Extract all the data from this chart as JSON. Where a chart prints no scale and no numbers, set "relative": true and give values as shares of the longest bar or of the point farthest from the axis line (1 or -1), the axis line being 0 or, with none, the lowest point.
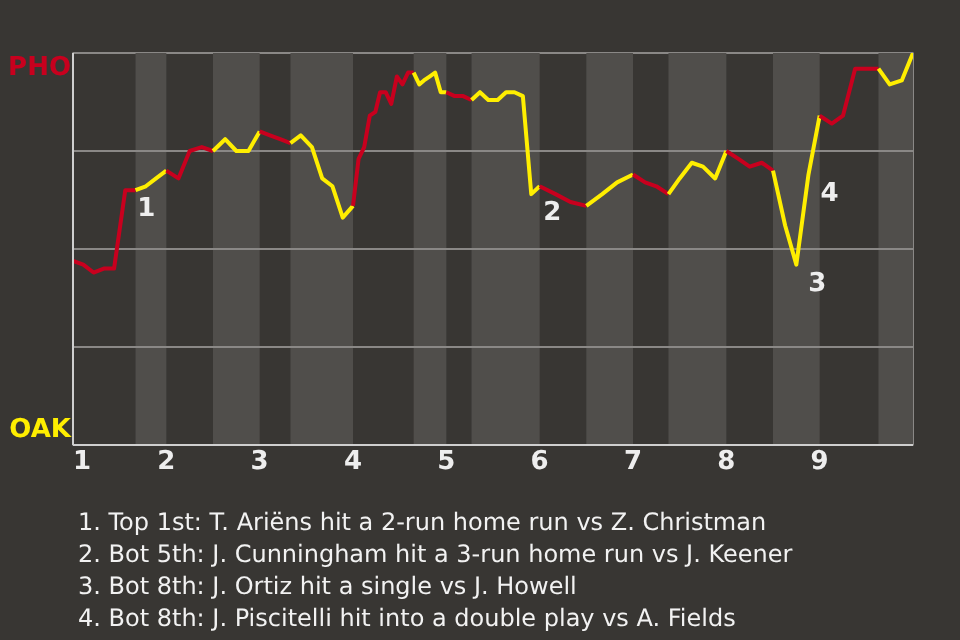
{
  "chart_data": {
    "type": "line",
    "relative": true,
    "xlim": [
      1,
      10
    ],
    "xticks": [
      1,
      2,
      3,
      4,
      5,
      6,
      7,
      8,
      9
    ],
    "line_style": "solid",
    "series": [
      {
        "color": "#c8001e",
        "x": [
          1,
          1.11,
          1.22,
          1.33,
          1.44,
          1.56,
          1.67
        ],
        "values": [
          0.47,
          0.46,
          0.44,
          0.45,
          0.45,
          0.65,
          0.65
        ]
      },
      {
        "color": "#ffee00",
        "x": [
          1.67,
          1.78,
          1.89,
          2
        ],
        "values": [
          0.65,
          0.66,
          0.68,
          0.7
        ]
      },
      {
        "color": "#c8001e",
        "x": [
          2,
          2.13,
          2.25,
          2.38,
          2.5
        ],
        "values": [
          0.7,
          0.68,
          0.75,
          0.76,
          0.75
        ]
      },
      {
        "color": "#ffee00",
        "x": [
          2.5,
          2.63,
          2.75,
          2.88,
          3
        ],
        "values": [
          0.75,
          0.78,
          0.75,
          0.75,
          0.8
        ]
      },
      {
        "color": "#c8001e",
        "x": [
          3,
          3.11,
          3.22,
          3.33
        ],
        "values": [
          0.8,
          0.79,
          0.78,
          0.77
        ]
      },
      {
        "color": "#ffee00",
        "x": [
          3.33,
          3.44,
          3.56,
          3.67,
          3.78,
          3.89,
          4
        ],
        "values": [
          0.77,
          0.79,
          0.76,
          0.68,
          0.66,
          0.58,
          0.61
        ]
      },
      {
        "color": "#c8001e",
        "x": [
          4,
          4.06,
          4.12,
          4.18,
          4.24,
          4.29,
          4.35,
          4.41,
          4.47,
          4.53,
          4.59,
          4.65
        ],
        "values": [
          0.61,
          0.73,
          0.76,
          0.84,
          0.85,
          0.9,
          0.9,
          0.87,
          0.94,
          0.92,
          0.95,
          0.95
        ]
      },
      {
        "color": "#ffee00",
        "x": [
          4.65,
          4.71,
          4.76,
          4.82,
          4.88,
          4.94,
          5
        ],
        "values": [
          0.95,
          0.92,
          0.93,
          0.94,
          0.95,
          0.9,
          0.9
        ]
      },
      {
        "color": "#c8001e",
        "x": [
          5,
          5.09,
          5.18,
          5.27
        ],
        "values": [
          0.9,
          0.89,
          0.89,
          0.88
        ]
      },
      {
        "color": "#ffee00",
        "x": [
          5.27,
          5.36,
          5.45,
          5.55,
          5.64,
          5.73,
          5.82,
          5.91,
          6
        ],
        "values": [
          0.88,
          0.9,
          0.88,
          0.88,
          0.9,
          0.9,
          0.89,
          0.64,
          0.66
        ]
      },
      {
        "color": "#c8001e",
        "x": [
          6,
          6.17,
          6.33,
          6.5
        ],
        "values": [
          0.66,
          0.64,
          0.62,
          0.61
        ]
      },
      {
        "color": "#ffee00",
        "x": [
          6.5,
          6.67,
          6.83,
          7
        ],
        "values": [
          0.61,
          0.64,
          0.67,
          0.69
        ]
      },
      {
        "color": "#c8001e",
        "x": [
          7,
          7.13,
          7.25,
          7.38
        ],
        "values": [
          0.69,
          0.67,
          0.66,
          0.64
        ]
      },
      {
        "color": "#ffee00",
        "x": [
          7.38,
          7.5,
          7.63,
          7.75,
          7.88,
          8
        ],
        "values": [
          0.64,
          0.68,
          0.72,
          0.71,
          0.68,
          0.75
        ]
      },
      {
        "color": "#c8001e",
        "x": [
          8,
          8.13,
          8.25,
          8.38,
          8.5
        ],
        "values": [
          0.75,
          0.73,
          0.71,
          0.72,
          0.7
        ]
      },
      {
        "color": "#ffee00",
        "x": [
          8.5,
          8.63,
          8.75,
          8.88,
          9
        ],
        "values": [
          0.7,
          0.56,
          0.46,
          0.69,
          0.84
        ]
      },
      {
        "color": "#c8001e",
        "x": [
          9,
          9.13,
          9.25,
          9.38,
          9.5,
          9.63
        ],
        "values": [
          0.84,
          0.82,
          0.84,
          0.96,
          0.96,
          0.96
        ]
      },
      {
        "color": "#ffee00",
        "x": [
          9.63,
          9.75,
          9.88,
          10
        ],
        "values": [
          0.96,
          0.92,
          0.93,
          1.0
        ]
      }
    ],
    "bands": [
      {
        "axis": "x",
        "from": 1.67,
        "to": 2,
        "color": "#504e4b"
      },
      {
        "axis": "x",
        "from": 2.5,
        "to": 3,
        "color": "#504e4b"
      },
      {
        "axis": "x",
        "from": 3.33,
        "to": 4,
        "color": "#504e4b"
      },
      {
        "axis": "x",
        "from": 4.65,
        "to": 5,
        "color": "#504e4b"
      },
      {
        "axis": "x",
        "from": 5.27,
        "to": 6,
        "color": "#504e4b"
      },
      {
        "axis": "x",
        "from": 6.5,
        "to": 7,
        "color": "#504e4b"
      },
      {
        "axis": "x",
        "from": 7.38,
        "to": 8,
        "color": "#504e4b"
      },
      {
        "axis": "x",
        "from": 8.5,
        "to": 9,
        "color": "#504e4b"
      },
      {
        "axis": "x",
        "from": 9.63,
        "to": 10,
        "color": "#504e4b"
      }
    ],
    "ref_lines": [
      {
        "axis": "y",
        "value": 0.25,
        "color": "#8a8886"
      },
      {
        "axis": "y",
        "value": 0.5,
        "color": "#8a8886"
      },
      {
        "axis": "y",
        "value": 0.75,
        "color": "#8a8886"
      }
    ],
    "annotations": [
      "PHO",
      "OAK",
      {
        "text": "1",
        "x": 1.56,
        "y": 0.65
      },
      {
        "text": "2",
        "x": 5.91,
        "y": 0.64
      },
      {
        "text": "3",
        "x": 8.75,
        "y": 0.46
      },
      {
        "text": "4",
        "x": 8.88,
        "y": 0.69
      },
      "1. Top 1st: T. Ariëns hit a 2-run home run vs Z. Christman",
      "2. Bot 5th: J. Cunningham hit a 3-run home run vs J. Keener",
      "3. Bot 8th: J. Ortiz hit a single vs J. Howell",
      "4. Bot 8th: J. Piscitelli hit into a double play vs A. Fields"
    ]
  }
}
